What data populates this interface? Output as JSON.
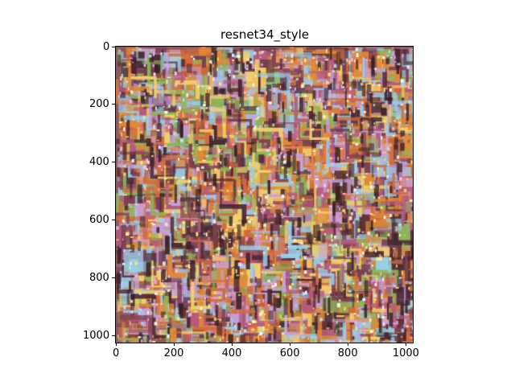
{
  "figure": {
    "title": "resnet34_style"
  },
  "image": {
    "description_kind": "stylized abstract texture",
    "palette": [
      "#7a3f52",
      "#e08a3a",
      "#c9a0d8",
      "#8fb45a",
      "#f3d06a",
      "#4a2a34",
      "#9ad0e8",
      "#b45a7a",
      "#d46a3a"
    ],
    "pixel_extent": {
      "width": 1024,
      "height": 1024
    }
  },
  "axes": {
    "x_ticks": [
      "0",
      "200",
      "400",
      "600",
      "800",
      "1000"
    ],
    "y_ticks": [
      "0",
      "200",
      "400",
      "600",
      "800",
      "1000"
    ],
    "x_tick_values": [
      0,
      200,
      400,
      600,
      800,
      1000
    ],
    "y_tick_values": [
      0,
      200,
      400,
      600,
      800,
      1000
    ],
    "xlim": [
      0,
      1024
    ],
    "ylim": [
      1024,
      0
    ]
  }
}
